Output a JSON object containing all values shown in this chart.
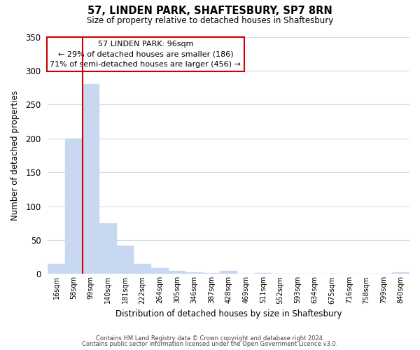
{
  "title": "57, LINDEN PARK, SHAFTESBURY, SP7 8RN",
  "subtitle": "Size of property relative to detached houses in Shaftesbury",
  "xlabel": "Distribution of detached houses by size in Shaftesbury",
  "ylabel": "Number of detached properties",
  "bin_labels": [
    "16sqm",
    "58sqm",
    "99sqm",
    "140sqm",
    "181sqm",
    "222sqm",
    "264sqm",
    "305sqm",
    "346sqm",
    "387sqm",
    "428sqm",
    "469sqm",
    "511sqm",
    "552sqm",
    "593sqm",
    "634sqm",
    "675sqm",
    "716sqm",
    "758sqm",
    "799sqm",
    "840sqm"
  ],
  "bar_heights": [
    15,
    200,
    280,
    75,
    42,
    15,
    9,
    5,
    2,
    1,
    5,
    0,
    1,
    0,
    0,
    0,
    0,
    0,
    0,
    0,
    2
  ],
  "bar_color": "#c8d8f0",
  "bar_edge_color": "#a0b8d8",
  "highlight_bar_index": 2,
  "highlight_line_color": "#cc0000",
  "ylim": [
    0,
    350
  ],
  "yticks": [
    0,
    50,
    100,
    150,
    200,
    250,
    300,
    350
  ],
  "annotation_title": "57 LINDEN PARK: 96sqm",
  "annotation_line1": "← 29% of detached houses are smaller (186)",
  "annotation_line2": "71% of semi-detached houses are larger (456) →",
  "annotation_box_color": "#ffffff",
  "annotation_box_edge": "#cc0000",
  "footer_line1": "Contains HM Land Registry data © Crown copyright and database right 2024.",
  "footer_line2": "Contains public sector information licensed under the Open Government Licence v3.0.",
  "background_color": "#ffffff",
  "grid_color": "#d0dce8"
}
